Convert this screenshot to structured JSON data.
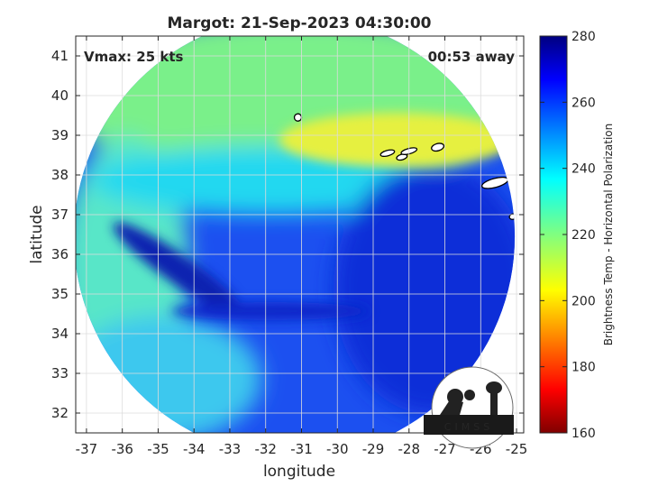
{
  "chart_data": {
    "type": "heatmap",
    "title": "Margot: 21-Sep-2023 04:30:00",
    "xlabel": "longitude",
    "ylabel": "latitude",
    "xlim": [
      -37.3,
      -24.8
    ],
    "ylim": [
      31.5,
      41.5
    ],
    "x_ticks": [
      -37,
      -36,
      -35,
      -34,
      -33,
      -32,
      -31,
      -30,
      -29,
      -28,
      -27,
      -26,
      -25
    ],
    "y_ticks": [
      32,
      33,
      34,
      35,
      36,
      37,
      38,
      39,
      40,
      41
    ],
    "grid": true,
    "colormap": "jet",
    "colorbar": {
      "label": "Brightness Temp - Horizontal Polarization",
      "range": [
        160,
        280
      ],
      "ticks": [
        160,
        180,
        200,
        220,
        240,
        260,
        280
      ]
    },
    "annotations": {
      "vmax": "Vmax: 25 kts",
      "time_away": "00:53 away"
    },
    "swath": {
      "center_lon": -31.2,
      "center_lat": 36.45,
      "radius_deg": 6.15
    },
    "field_description_regions": [
      {
        "lon": -31.0,
        "lat": 39.5,
        "value": 222
      },
      {
        "lon": -28.5,
        "lat": 38.7,
        "value": 208
      },
      {
        "lon": -35.5,
        "lat": 37.0,
        "value": 232
      },
      {
        "lon": -30.0,
        "lat": 35.5,
        "value": 262
      },
      {
        "lon": -27.0,
        "lat": 34.0,
        "value": 268
      },
      {
        "lon": -34.0,
        "lat": 33.0,
        "value": 246
      }
    ],
    "land_contours": [
      {
        "lon": -31.1,
        "lat": 39.45
      },
      {
        "lon": -28.6,
        "lat": 38.55
      },
      {
        "lon": -28.2,
        "lat": 38.45
      },
      {
        "lon": -28.0,
        "lat": 38.6
      },
      {
        "lon": -27.2,
        "lat": 38.7
      },
      {
        "lon": -25.6,
        "lat": 37.8
      },
      {
        "lon": -25.1,
        "lat": 36.95
      }
    ]
  },
  "logo": {
    "text": "CIMSS"
  },
  "colors": {
    "axis": "#262626",
    "grid": "#dcdcdc",
    "contour": "#000000"
  }
}
